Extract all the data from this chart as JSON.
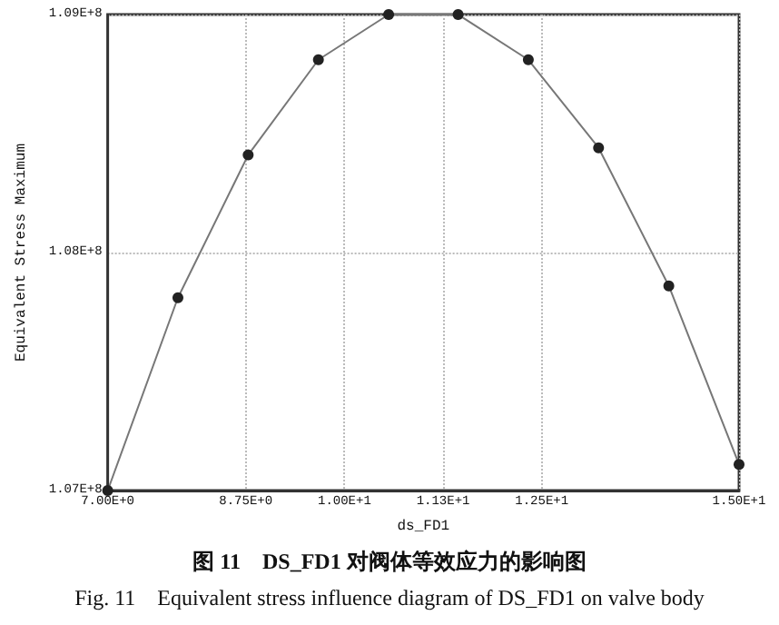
{
  "chart_data": {
    "type": "line",
    "xlabel": "ds_FD1",
    "ylabel": "Equivalent Stress Maximum",
    "annotations": [
      "图 11　DS_FD1 对阀体等效应力的影响图",
      "Fig. 11　Equivalent stress influence diagram of DS_FD1 on valve body"
    ],
    "x": [
      7,
      7.89,
      8.78,
      9.67,
      10.56,
      11.44,
      12.33,
      13.22,
      14.11,
      15
    ],
    "series": [
      {
        "color": "#222222",
        "values": [
          107000000,
          107810000,
          108410000,
          108810000,
          109000000,
          109000000,
          108810000,
          108440000,
          107860000,
          107110000
        ]
      }
    ],
    "xlim": [
      7,
      15
    ],
    "xticks": [
      {
        "value": 7,
        "label": "7.00E+0"
      },
      {
        "value": 8.75,
        "label": "8.75E+0"
      },
      {
        "value": 10,
        "label": "1.00E+1"
      },
      {
        "value": 11.25,
        "label": "1.13E+1"
      },
      {
        "value": 12.5,
        "label": "1.25E+1"
      },
      {
        "value": 15,
        "label": "1.50E+1"
      }
    ],
    "ylim": [
      107000000,
      109000000
    ],
    "yticks": [
      {
        "value": 107000000,
        "label": "1.07E+8"
      },
      {
        "value": 108000000,
        "label": "1.08E+8"
      },
      {
        "value": 109000000,
        "label": "1.09E+8"
      }
    ],
    "grid": true,
    "marker": "circle",
    "line_style": "solid"
  }
}
